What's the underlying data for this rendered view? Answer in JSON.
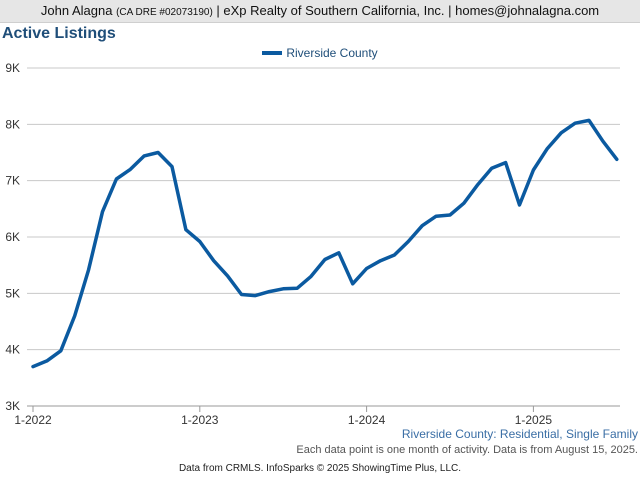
{
  "header": {
    "name": "John Alagna",
    "license": "(CA DRE #02073190)",
    "rest": "| eXp Realty of Southern California, Inc. | homes@johnalagna.com"
  },
  "footer": {
    "subtitle": "Riverside County: Residential, Single Family",
    "note": "Each data point is one month of activity. Data is from August 15, 2025.",
    "credit": "Data from CRMLS. InfoSparks © 2025 ShowingTime Plus, LLC."
  },
  "chart_data": {
    "type": "line",
    "title": "Active Listings",
    "xlabel": "",
    "ylabel": "",
    "ylim": [
      3000,
      9000
    ],
    "yticks": [
      3000,
      4000,
      5000,
      6000,
      7000,
      8000,
      9000
    ],
    "ytick_labels": [
      "3K",
      "4K",
      "5K",
      "6K",
      "7K",
      "8K",
      "9K"
    ],
    "xtick_labels": [
      "1-2022",
      "1-2023",
      "1-2024",
      "1-2025"
    ],
    "xtick_index": [
      0,
      12,
      24,
      36
    ],
    "grid": true,
    "legend": "top-center",
    "colors": {
      "series": "#0b5aa0",
      "grid": "#c8c8c8",
      "axis": "#999999"
    },
    "series": [
      {
        "name": "Riverside County",
        "x": [
          "2022-01",
          "2022-02",
          "2022-03",
          "2022-04",
          "2022-05",
          "2022-06",
          "2022-07",
          "2022-08",
          "2022-09",
          "2022-10",
          "2022-11",
          "2022-12",
          "2023-01",
          "2023-02",
          "2023-03",
          "2023-04",
          "2023-05",
          "2023-06",
          "2023-07",
          "2023-08",
          "2023-09",
          "2023-10",
          "2023-11",
          "2023-12",
          "2024-01",
          "2024-02",
          "2024-03",
          "2024-04",
          "2024-05",
          "2024-06",
          "2024-07",
          "2024-08",
          "2024-09",
          "2024-10",
          "2024-11",
          "2024-12",
          "2025-01",
          "2025-02",
          "2025-03",
          "2025-04",
          "2025-05",
          "2025-06",
          "2025-07"
        ],
        "values": [
          3700,
          3800,
          3980,
          4600,
          5420,
          6450,
          7030,
          7200,
          7440,
          7500,
          7250,
          6130,
          5920,
          5580,
          5310,
          4980,
          4960,
          5030,
          5080,
          5090,
          5300,
          5600,
          5720,
          5170,
          5440,
          5580,
          5680,
          5920,
          6200,
          6370,
          6390,
          6600,
          6930,
          7220,
          7320,
          6570,
          7190,
          7570,
          7850,
          8020,
          8070,
          7700,
          7380
        ]
      }
    ]
  }
}
